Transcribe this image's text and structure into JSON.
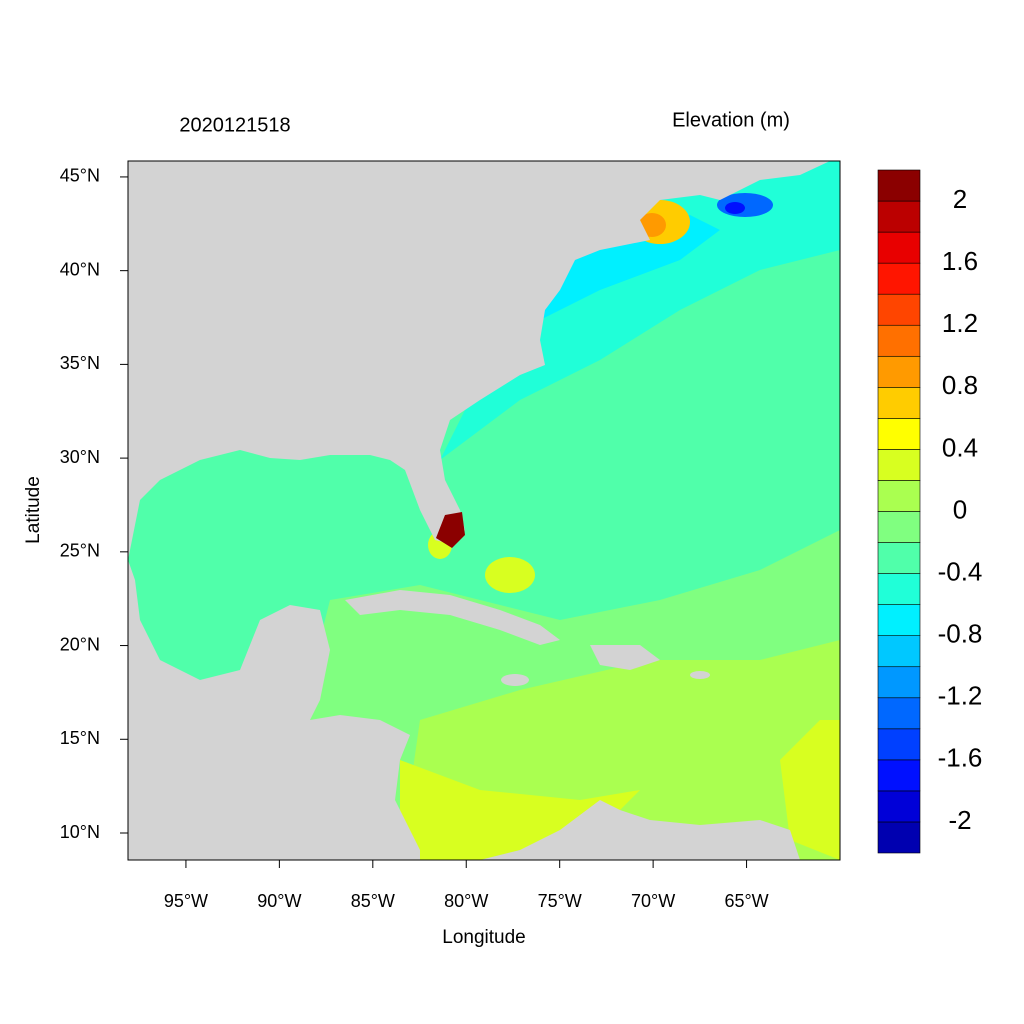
{
  "chart_data": {
    "type": "map",
    "title": "2020121518",
    "colorbar_title": "Elevation (m)",
    "xlabel": "Longitude",
    "ylabel": "Latitude",
    "xlim": [
      -98.1,
      -60
    ],
    "ylim": [
      8.56,
      45.85
    ],
    "xticks": [
      {
        "value": -95,
        "label": "95°W"
      },
      {
        "value": -90,
        "label": "90°W"
      },
      {
        "value": -85,
        "label": "85°W"
      },
      {
        "value": -80,
        "label": "80°W"
      },
      {
        "value": -75,
        "label": "75°W"
      },
      {
        "value": -70,
        "label": "70°W"
      },
      {
        "value": -65,
        "label": "65°W"
      }
    ],
    "yticks": [
      {
        "value": 10,
        "label": "10°N"
      },
      {
        "value": 15,
        "label": "15°N"
      },
      {
        "value": 20,
        "label": "20°N"
      },
      {
        "value": 25,
        "label": "25°N"
      },
      {
        "value": 30,
        "label": "30°N"
      },
      {
        "value": 35,
        "label": "35°N"
      },
      {
        "value": 40,
        "label": "40°N"
      },
      {
        "value": 45,
        "label": "45°N"
      }
    ],
    "levels": [
      -2.2,
      -2,
      -1.8,
      -1.6,
      -1.4,
      -1.2,
      -1,
      -0.8,
      -0.6,
      -0.4,
      -0.2,
      0,
      0.2,
      0.4,
      0.6,
      0.8,
      1,
      1.2,
      1.4,
      1.6,
      1.8,
      2,
      2.2
    ],
    "colors": [
      "#0000b0",
      "#0000d8",
      "#0010ff",
      "#0040ff",
      "#0068ff",
      "#0098ff",
      "#00c8ff",
      "#00f0ff",
      "#20ffd8",
      "#50ffaa",
      "#80ff80",
      "#aaff50",
      "#d8ff20",
      "#ffff00",
      "#ffcc00",
      "#ff9a00",
      "#ff7000",
      "#ff4500",
      "#ff1500",
      "#e80000",
      "#bb0000",
      "#8b0000"
    ],
    "colorbar_ticks": [
      -2,
      -1.6,
      -1.2,
      -0.8,
      -0.4,
      0,
      0.4,
      0.8,
      1.2,
      1.6,
      2
    ]
  }
}
